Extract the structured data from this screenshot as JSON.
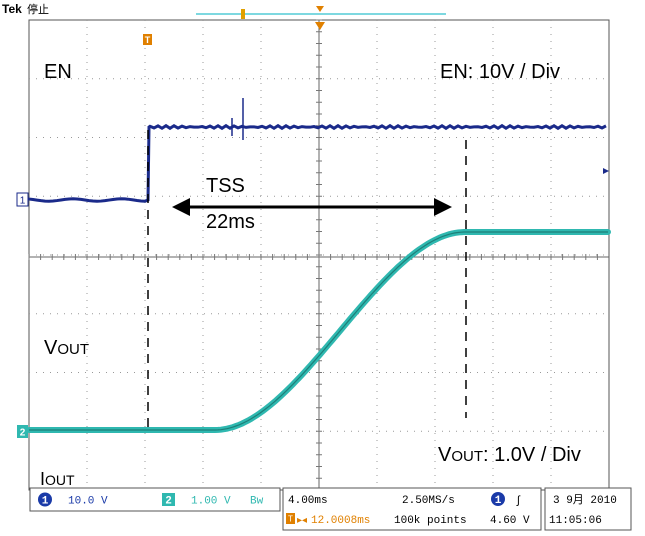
{
  "header": {
    "brand": "Tek",
    "state": "停止"
  },
  "annotations": {
    "en_label": "EN",
    "en_scale": "EN: 10V / Div",
    "tss_label": "TSS",
    "tss_value": "22ms",
    "vout_main": "V",
    "vout_sub": "OUT",
    "iout_main": "I",
    "iout_sub": "OUT",
    "vout_scale_main": "V",
    "vout_scale_sub": "OUT",
    "vout_scale_tail": ": 1.0V / Div"
  },
  "markers": {
    "ch1_marker": "1",
    "ch2_marker": "2",
    "trigger_marker": "T"
  },
  "status_bar": {
    "ch1_num": "1",
    "ch1_scale": "10.0 V",
    "ch2_num": "2",
    "ch2_scale": "1.00 V",
    "ch2_bw": "Bw",
    "timebase": "4.00ms",
    "sample_rate": "2.50MS/s",
    "trigger_src": "1",
    "trigger_slope": "∫",
    "position": "12.0008ms",
    "record_length": "100k points",
    "trigger_level": "4.60 V",
    "date": "3 9月  2010",
    "time": "11:05:06"
  },
  "colors": {
    "ch1": "#1a2a8a",
    "ch2": "#2fb8b0",
    "grid": "#888888",
    "trigger": "#e08000"
  }
}
